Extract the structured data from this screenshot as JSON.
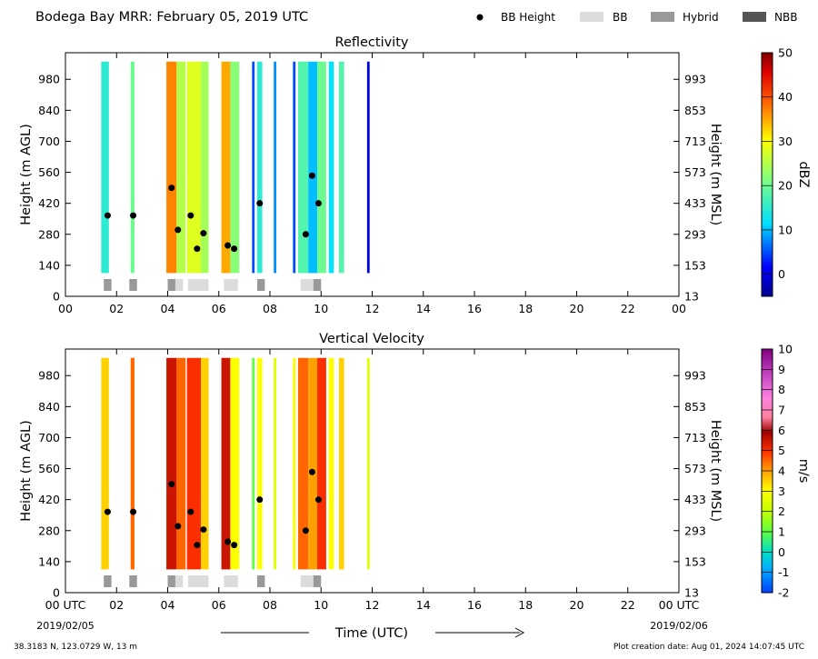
{
  "header": {
    "title": "Bodega Bay MRR:  February 05, 2019 UTC",
    "legend": [
      {
        "label": "BB Height",
        "symbol": "dot",
        "color": "#000000"
      },
      {
        "label": "BB",
        "symbol": "box",
        "color": "#dcdcdc"
      },
      {
        "label": "Hybrid",
        "symbol": "box",
        "color": "#999999"
      },
      {
        "label": "NBB",
        "symbol": "box",
        "color": "#555555"
      }
    ]
  },
  "footer": {
    "location": "38.3183 N, 123.0729 W, 13 m",
    "created": "Plot creation date: Aug 01, 2024 14:07:45 UTC",
    "start_date": "2019/02/05",
    "end_date": "2019/02/06",
    "xlabel": "Time (UTC)"
  },
  "chart_data": [
    {
      "type": "heatmap",
      "title": "Reflectivity",
      "ylabel": "Height (m AGL)",
      "ylabel_right": "Height (m MSL)",
      "colorbar_label": "dBZ",
      "colorbar_range": [
        -5,
        50
      ],
      "colorbar_ticks": [
        "0",
        "10",
        "20",
        "30",
        "40",
        "50"
      ],
      "x_range": [
        0,
        24
      ],
      "x_ticks": [
        "00",
        "02",
        "04",
        "06",
        "08",
        "10",
        "12",
        "14",
        "16",
        "18",
        "20",
        "22",
        "00"
      ],
      "y_range": [
        0,
        1100
      ],
      "y_ticks": [
        "0",
        "140",
        "280",
        "420",
        "560",
        "700",
        "840",
        "980"
      ],
      "y_ticks_right": [
        "13",
        "153",
        "293",
        "433",
        "573",
        "713",
        "853",
        "993"
      ],
      "data_top": 1060,
      "data_bottom": 105,
      "columns": [
        {
          "start": 1.4,
          "end": 1.7,
          "value": 15
        },
        {
          "start": 2.55,
          "end": 2.7,
          "value": 20
        },
        {
          "start": 3.95,
          "end": 4.35,
          "value": 37
        },
        {
          "start": 4.35,
          "end": 4.7,
          "value": 25
        },
        {
          "start": 4.75,
          "end": 5.3,
          "value": 28
        },
        {
          "start": 5.3,
          "end": 5.6,
          "value": 24
        },
        {
          "start": 6.1,
          "end": 6.45,
          "value": 35
        },
        {
          "start": 6.45,
          "end": 6.8,
          "value": 22
        },
        {
          "start": 7.3,
          "end": 7.4,
          "value": 5
        },
        {
          "start": 7.5,
          "end": 7.7,
          "value": 15
        },
        {
          "start": 8.15,
          "end": 8.25,
          "value": 8
        },
        {
          "start": 8.9,
          "end": 9.0,
          "value": 5
        },
        {
          "start": 9.1,
          "end": 9.5,
          "value": 18
        },
        {
          "start": 9.5,
          "end": 9.85,
          "value": 10
        },
        {
          "start": 9.85,
          "end": 10.2,
          "value": 20
        },
        {
          "start": 10.3,
          "end": 10.5,
          "value": 12
        },
        {
          "start": 10.7,
          "end": 10.9,
          "value": 18
        },
        {
          "start": 11.8,
          "end": 11.9,
          "value": 0
        }
      ],
      "bb_height": [
        {
          "x": 1.65,
          "y": 365
        },
        {
          "x": 2.65,
          "y": 365
        },
        {
          "x": 4.15,
          "y": 490
        },
        {
          "x": 4.4,
          "y": 300
        },
        {
          "x": 4.9,
          "y": 365
        },
        {
          "x": 5.15,
          "y": 215
        },
        {
          "x": 5.4,
          "y": 285
        },
        {
          "x": 6.35,
          "y": 230
        },
        {
          "x": 6.6,
          "y": 215
        },
        {
          "x": 7.6,
          "y": 420
        },
        {
          "x": 9.4,
          "y": 280
        },
        {
          "x": 9.65,
          "y": 545
        },
        {
          "x": 9.9,
          "y": 420
        }
      ],
      "bb_class": [
        {
          "start": 1.5,
          "end": 1.8,
          "kind": "Hybrid"
        },
        {
          "start": 2.5,
          "end": 2.8,
          "kind": "Hybrid"
        },
        {
          "start": 4.0,
          "end": 4.3,
          "kind": "Hybrid"
        },
        {
          "start": 4.3,
          "end": 4.6,
          "kind": "BB"
        },
        {
          "start": 4.8,
          "end": 5.6,
          "kind": "BB"
        },
        {
          "start": 6.2,
          "end": 6.75,
          "kind": "BB"
        },
        {
          "start": 7.5,
          "end": 7.8,
          "kind": "Hybrid"
        },
        {
          "start": 9.2,
          "end": 9.7,
          "kind": "BB"
        },
        {
          "start": 9.7,
          "end": 10.0,
          "kind": "Hybrid"
        }
      ]
    },
    {
      "type": "heatmap",
      "title": "Vertical Velocity",
      "ylabel": "Height (m AGL)",
      "ylabel_right": "Height (m MSL)",
      "colorbar_label": "m/s",
      "colorbar_range": [
        -2,
        10
      ],
      "colorbar_ticks": [
        "-2",
        "-1",
        "0",
        "1",
        "2",
        "3",
        "4",
        "5",
        "6",
        "7",
        "8",
        "9",
        "10"
      ],
      "x_range": [
        0,
        24
      ],
      "x_ticks": [
        "00 UTC",
        "02",
        "04",
        "06",
        "08",
        "10",
        "12",
        "14",
        "16",
        "18",
        "20",
        "22",
        "00 UTC"
      ],
      "y_range": [
        0,
        1100
      ],
      "y_ticks": [
        "0",
        "140",
        "280",
        "420",
        "560",
        "700",
        "840",
        "980"
      ],
      "y_ticks_right": [
        "13",
        "153",
        "293",
        "433",
        "573",
        "713",
        "853",
        "993"
      ],
      "data_top": 1060,
      "data_bottom": 105,
      "columns": [
        {
          "start": 1.4,
          "end": 1.7,
          "value": 3.5
        },
        {
          "start": 2.55,
          "end": 2.7,
          "value": 4.5
        },
        {
          "start": 3.95,
          "end": 4.35,
          "value": 5.5
        },
        {
          "start": 4.35,
          "end": 4.7,
          "value": 4.5
        },
        {
          "start": 4.75,
          "end": 5.3,
          "value": 5
        },
        {
          "start": 5.3,
          "end": 5.6,
          "value": 3.5
        },
        {
          "start": 6.1,
          "end": 6.45,
          "value": 5.5
        },
        {
          "start": 6.45,
          "end": 6.8,
          "value": 3
        },
        {
          "start": 7.3,
          "end": 7.4,
          "value": 1
        },
        {
          "start": 7.5,
          "end": 7.7,
          "value": 3
        },
        {
          "start": 8.15,
          "end": 8.25,
          "value": 2.5
        },
        {
          "start": 8.9,
          "end": 9.0,
          "value": 3
        },
        {
          "start": 9.1,
          "end": 9.5,
          "value": 4.5
        },
        {
          "start": 9.5,
          "end": 9.85,
          "value": 4
        },
        {
          "start": 9.85,
          "end": 10.2,
          "value": 5
        },
        {
          "start": 10.3,
          "end": 10.5,
          "value": 3
        },
        {
          "start": 10.7,
          "end": 10.9,
          "value": 3.5
        },
        {
          "start": 11.8,
          "end": 11.9,
          "value": 2.5
        }
      ],
      "bb_height": [
        {
          "x": 1.65,
          "y": 365
        },
        {
          "x": 2.65,
          "y": 365
        },
        {
          "x": 4.15,
          "y": 490
        },
        {
          "x": 4.4,
          "y": 300
        },
        {
          "x": 4.9,
          "y": 365
        },
        {
          "x": 5.15,
          "y": 215
        },
        {
          "x": 5.4,
          "y": 285
        },
        {
          "x": 6.35,
          "y": 230
        },
        {
          "x": 6.6,
          "y": 215
        },
        {
          "x": 7.6,
          "y": 420
        },
        {
          "x": 9.4,
          "y": 280
        },
        {
          "x": 9.65,
          "y": 545
        },
        {
          "x": 9.9,
          "y": 420
        }
      ],
      "bb_class": [
        {
          "start": 1.5,
          "end": 1.8,
          "kind": "Hybrid"
        },
        {
          "start": 2.5,
          "end": 2.8,
          "kind": "Hybrid"
        },
        {
          "start": 4.0,
          "end": 4.3,
          "kind": "Hybrid"
        },
        {
          "start": 4.3,
          "end": 4.6,
          "kind": "BB"
        },
        {
          "start": 4.8,
          "end": 5.6,
          "kind": "BB"
        },
        {
          "start": 6.2,
          "end": 6.75,
          "kind": "BB"
        },
        {
          "start": 7.5,
          "end": 7.8,
          "kind": "Hybrid"
        },
        {
          "start": 9.2,
          "end": 9.7,
          "kind": "BB"
        },
        {
          "start": 9.7,
          "end": 10.0,
          "kind": "Hybrid"
        }
      ]
    }
  ]
}
